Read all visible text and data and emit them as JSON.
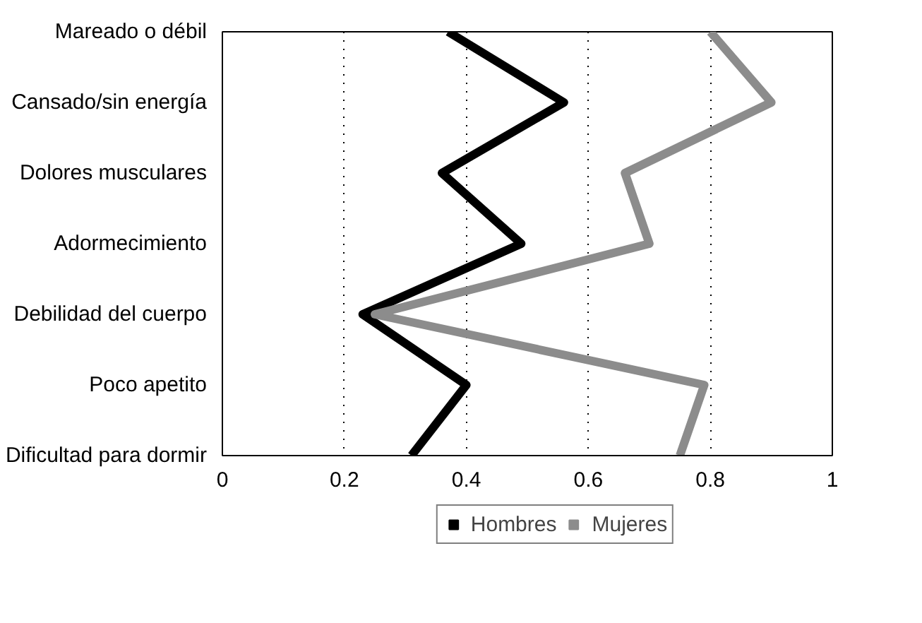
{
  "chart_data": {
    "type": "line",
    "orientation": "horizontal",
    "categories": [
      "Mareado o débil",
      "Cansado/sin energía",
      "Dolores musculares",
      "Adormecimiento",
      "Debilidad del cuerpo",
      "Poco apetito",
      "Dificultad para dormir"
    ],
    "series": [
      {
        "name": "Hombres",
        "color": "#000000",
        "values": [
          0.37,
          0.56,
          0.36,
          0.49,
          0.23,
          0.4,
          0.31
        ]
      },
      {
        "name": "Mujeres",
        "color": "#8c8c8c",
        "values": [
          0.8,
          0.9,
          0.66,
          0.7,
          0.25,
          0.79,
          0.75
        ]
      }
    ],
    "xlim": [
      0,
      1
    ],
    "xticks": [
      0,
      0.2,
      0.4,
      0.6,
      0.8,
      1
    ],
    "grid": "x",
    "legend": "bottom",
    "line_style": "solid"
  }
}
